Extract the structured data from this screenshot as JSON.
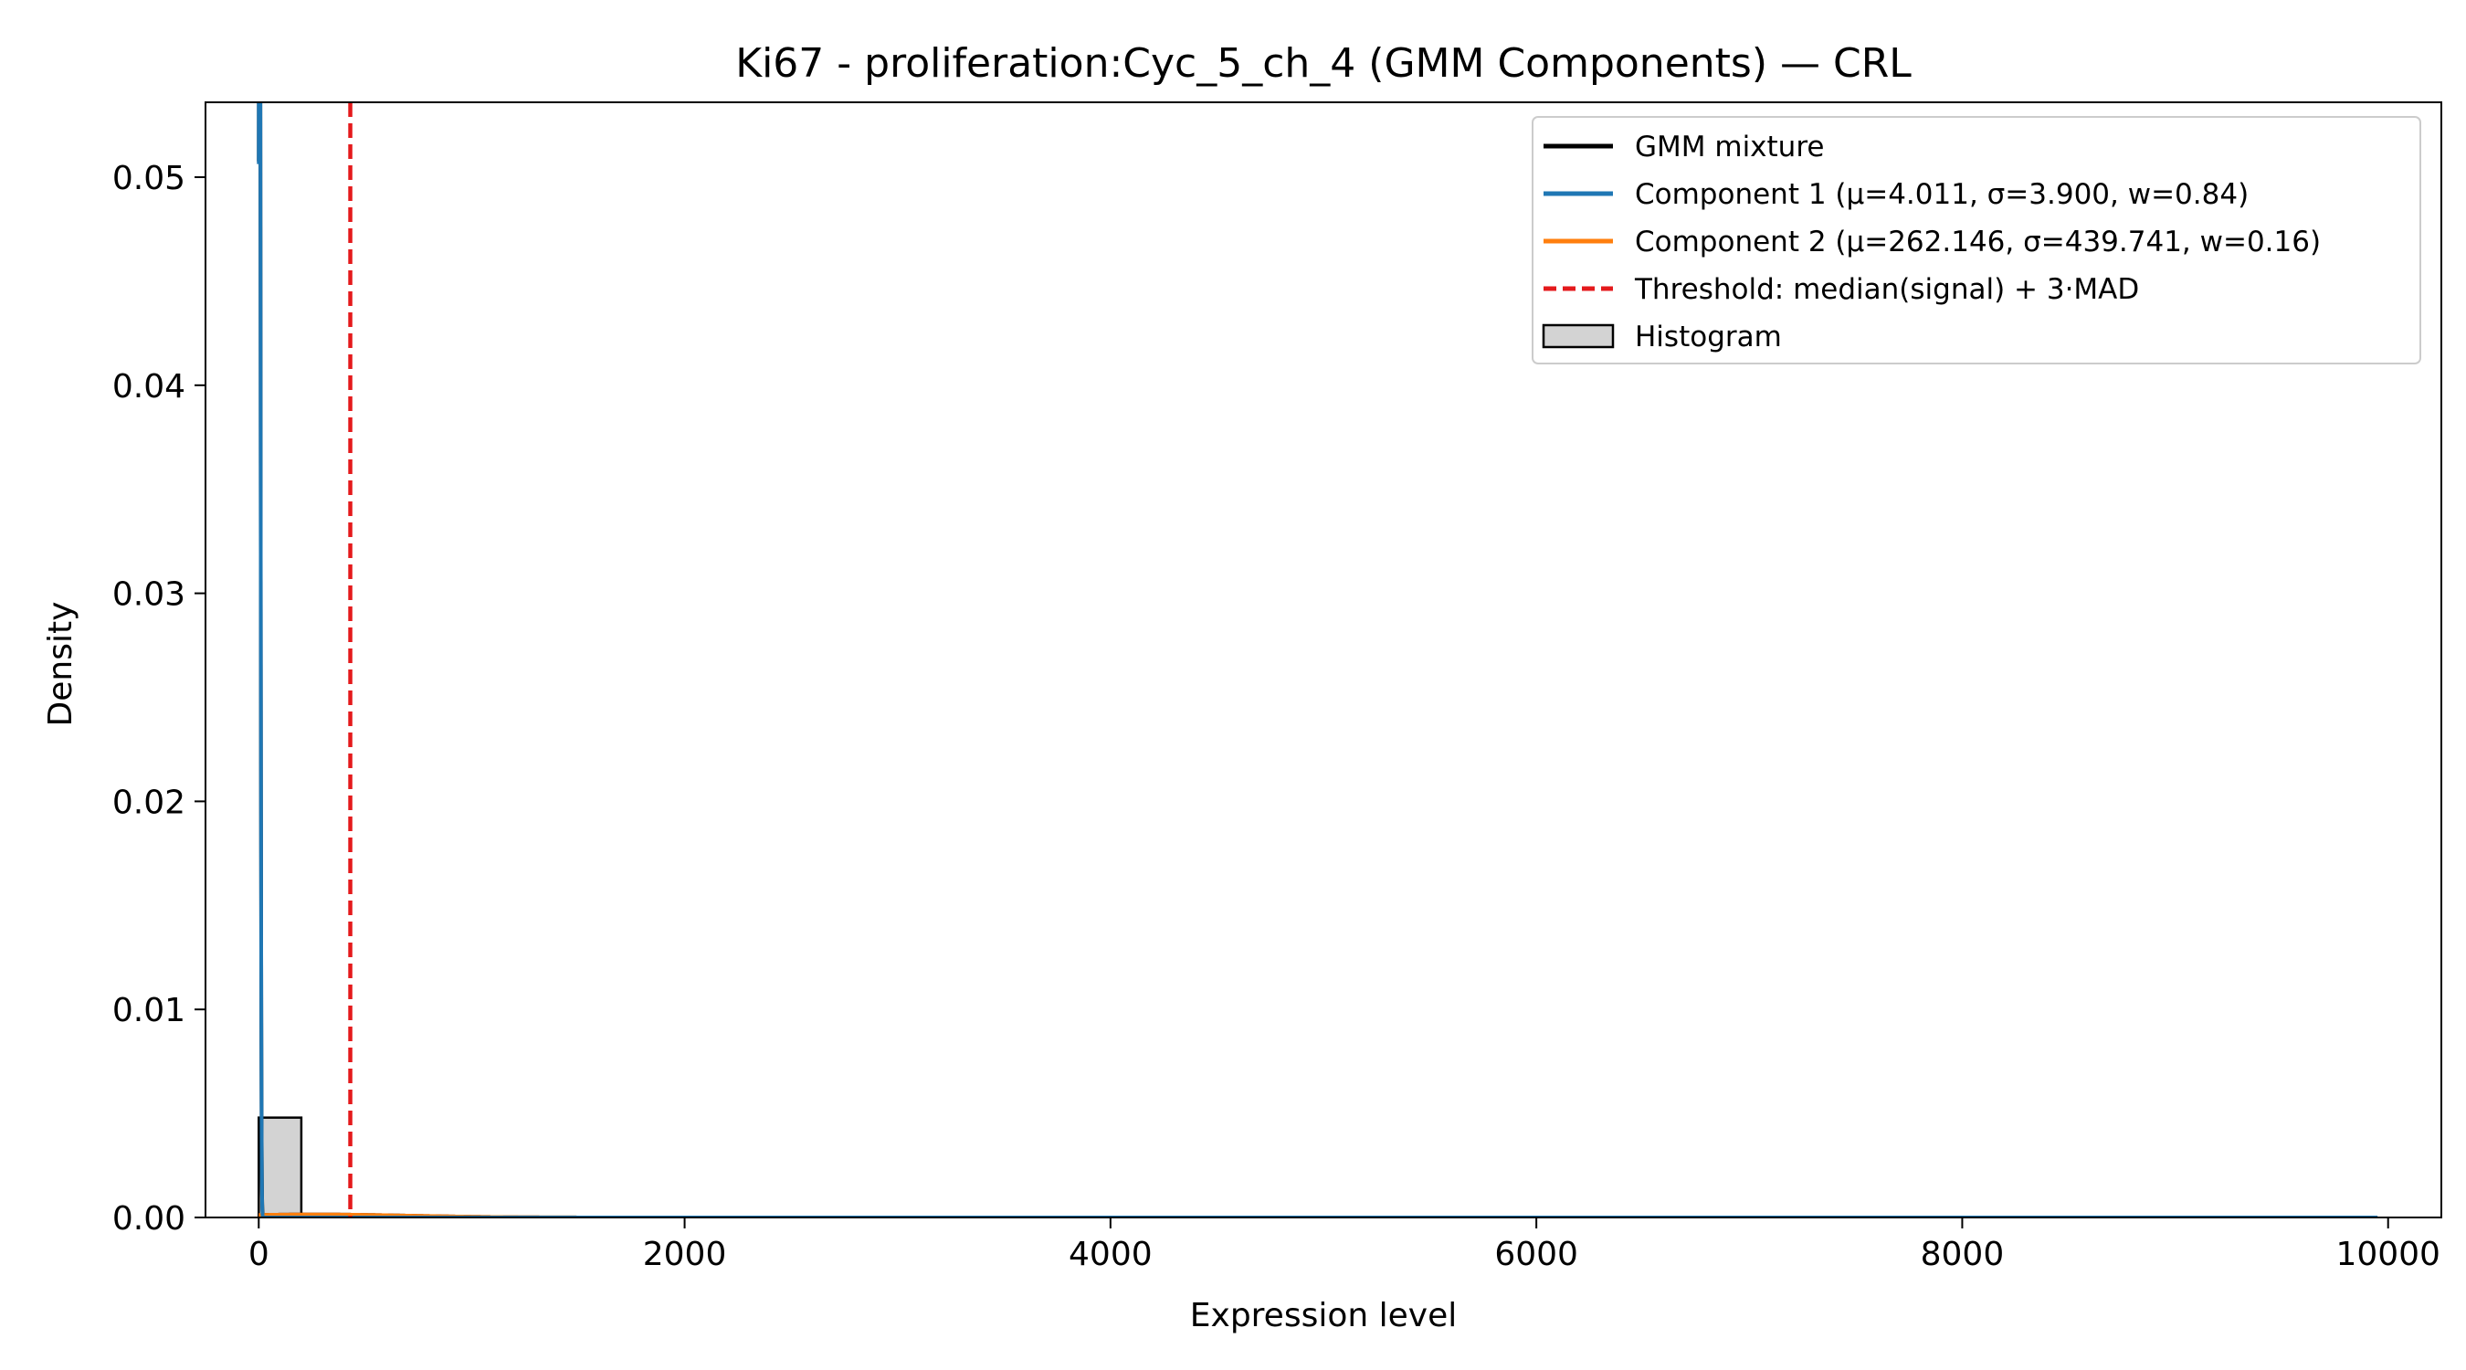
{
  "chart_data": {
    "type": "histogram+line",
    "title": "Ki67 - proliferation:Cyc_5_ch_4 (GMM Components) — CRL",
    "xlabel": "Expression level",
    "ylabel": "Density",
    "xlim": [
      -250,
      10250
    ],
    "ylim": [
      0,
      0.0536
    ],
    "x_ticks": [
      0,
      2000,
      4000,
      6000,
      8000,
      10000
    ],
    "x_tick_labels": [
      "0",
      "2000",
      "4000",
      "6000",
      "8000",
      "10000"
    ],
    "y_ticks": [
      0,
      0.01,
      0.02,
      0.03,
      0.04,
      0.05
    ],
    "y_tick_labels": [
      "0.00",
      "0.01",
      "0.02",
      "0.03",
      "0.04",
      "0.05"
    ],
    "grid": false,
    "legend_position": "top-right",
    "legend": [
      {
        "label": "GMM mixture",
        "color": "#000000",
        "style": "solid"
      },
      {
        "label": "Component 1 (μ=4.011, σ=3.900, w=0.84)",
        "color": "#1f77b4",
        "style": "solid"
      },
      {
        "label": "Component 2 (μ=262.146, σ=439.741, w=0.16)",
        "color": "#ff7f0e",
        "style": "solid"
      },
      {
        "label": "Threshold: median(signal) + 3·MAD",
        "color": "#e41a1c",
        "style": "dashed"
      },
      {
        "label": "Histogram",
        "color": "#d3d3d3",
        "style": "patch"
      }
    ],
    "components": [
      {
        "name": "Component 1",
        "mu": 4.011,
        "sigma": 3.9,
        "weight": 0.84,
        "color": "#1f77b4"
      },
      {
        "name": "Component 2",
        "mu": 262.146,
        "sigma": 439.741,
        "weight": 0.16,
        "color": "#ff7f0e"
      }
    ],
    "curve_x_range": [
      0,
      9950
    ],
    "threshold_x": 430,
    "threshold_color": "#e41a1c",
    "histogram": {
      "bins": [
        {
          "x0": 0,
          "x1": 200,
          "density": 0.0048
        }
      ],
      "color": "#d3d3d3",
      "edgecolor": "#000000"
    }
  }
}
